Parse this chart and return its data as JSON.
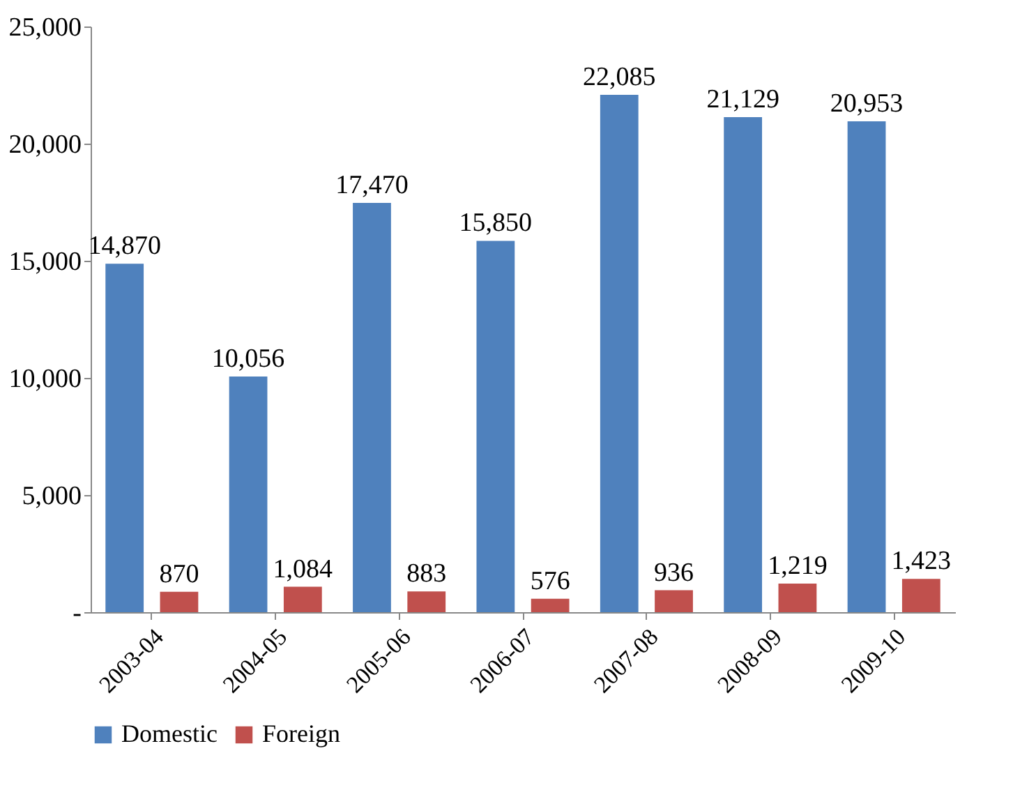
{
  "chart_data": {
    "type": "bar",
    "categories": [
      "2003-04",
      "2004-05",
      "2005-06",
      "2006-07",
      "2007-08",
      "2008-09",
      "2009-10"
    ],
    "series": [
      {
        "name": "Domestic",
        "color": "#4f81bd",
        "values": [
          14870,
          10056,
          17470,
          15850,
          22085,
          21129,
          20953
        ],
        "value_labels": [
          "14,870",
          "10,056",
          "17,470",
          "15,850",
          "22,085",
          "21,129",
          "20,953"
        ]
      },
      {
        "name": "Foreign",
        "color": "#c0504d",
        "values": [
          870,
          1084,
          883,
          576,
          936,
          1219,
          1423
        ],
        "value_labels": [
          "870",
          "1,084",
          "883",
          "576",
          "936",
          "1,219",
          "1,423"
        ]
      }
    ],
    "ylim": [
      0,
      25000
    ],
    "yticks": [
      {
        "value": 0,
        "label": "-"
      },
      {
        "value": 5000,
        "label": "5,000"
      },
      {
        "value": 10000,
        "label": "10,000"
      },
      {
        "value": 15000,
        "label": "15,000"
      },
      {
        "value": 20000,
        "label": "20,000"
      },
      {
        "value": 25000,
        "label": "25,000"
      }
    ],
    "grid": false,
    "legend": "bottom"
  }
}
